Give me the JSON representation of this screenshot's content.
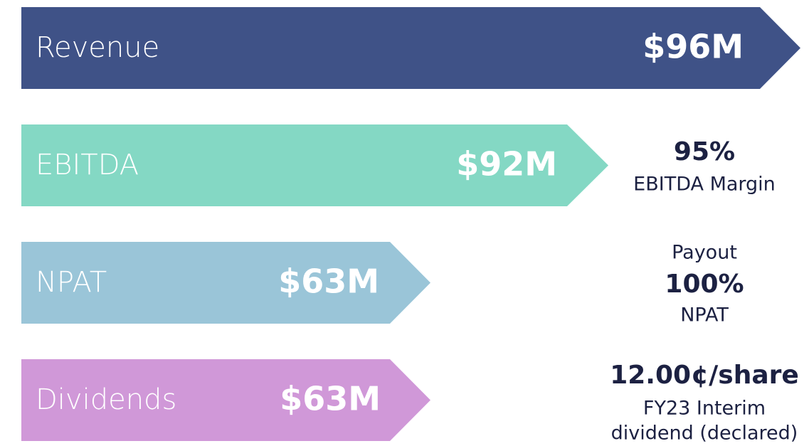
{
  "rows": [
    {
      "label": "Revenue",
      "value": "$96M"
    },
    {
      "label": "EBITDA",
      "value": "$92M",
      "note": [
        "95%",
        "EBITDA Margin"
      ]
    },
    {
      "label": "NPAT",
      "value": "$63M",
      "note": [
        "Payout",
        "100%",
        "NPAT"
      ]
    },
    {
      "label": "Dividends",
      "value": "$63M",
      "note": [
        "12.00¢/share",
        "FY23 Interim",
        "dividend (declared)"
      ]
    }
  ]
}
